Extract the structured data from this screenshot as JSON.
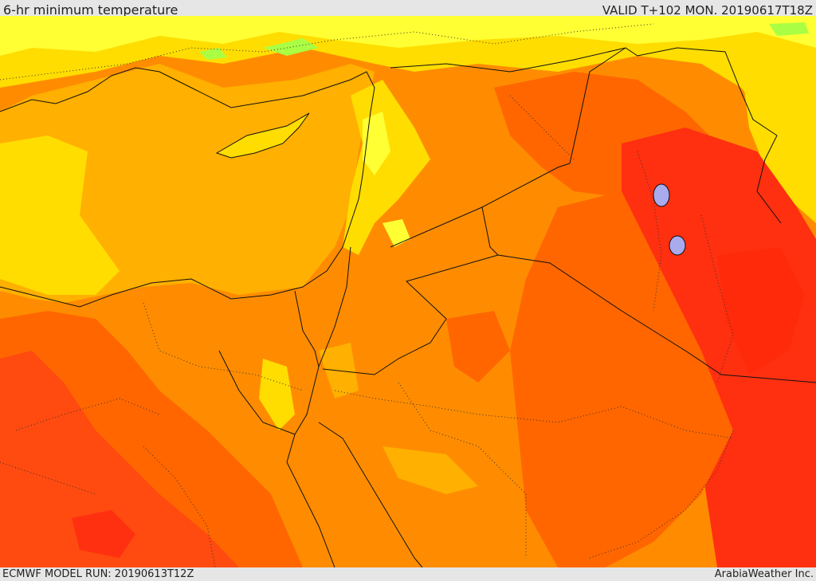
{
  "header": {
    "title": "6-hr minimum temperature",
    "valid": "VALID T+102 MON. 20190617T18Z"
  },
  "footer": {
    "model_run": "ECMWF MODEL RUN: 20190613T12Z",
    "credit": "ArabiaWeather Inc."
  },
  "colors": {
    "pale_yellow": "#ffff33",
    "yellow": "#ffdd00",
    "gold": "#ffb000",
    "orange": "#ff8c00",
    "dark_orange": "#ff6600",
    "red_orange": "#ff4a10",
    "red": "#ff3010",
    "green_patch": "#aaff44",
    "border_line": "#111111"
  }
}
